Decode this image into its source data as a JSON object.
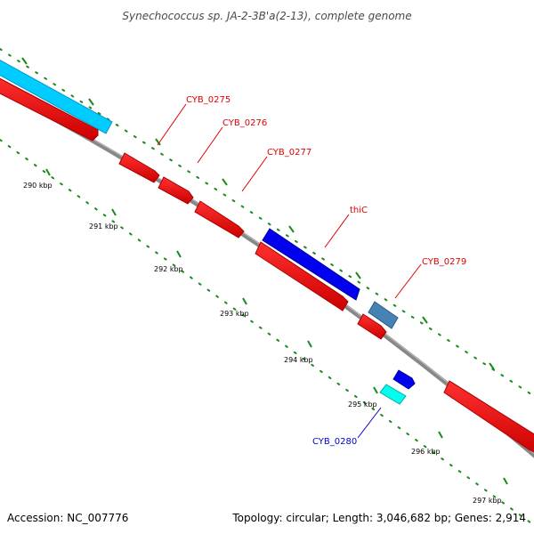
{
  "title": "Synechococcus sp. JA-2-3B'a(2-13), complete genome",
  "footer": {
    "accession": "Accession: NC_007776",
    "topology": "Topology: circular; Length: 3,046,682 bp; Genes: 2,914"
  },
  "colors": {
    "forward_strand": "#0000ee",
    "reverse_strand": "#ff0000",
    "backbone": "#888888",
    "tick": "#1a8a1a",
    "cyan_feature": "#00ccff",
    "steel_feature": "#4682b4",
    "aqua_feature": "#00ffee"
  },
  "ticks": [
    {
      "label": "290 kbp"
    },
    {
      "label": "291 kbp"
    },
    {
      "label": "292 kbp"
    },
    {
      "label": "293 kbp"
    },
    {
      "label": "294 kbp"
    },
    {
      "label": "295 kbp"
    },
    {
      "label": "296 kbp"
    },
    {
      "label": "297 kbp"
    }
  ],
  "gene_labels": [
    {
      "name": "CYB_0275",
      "strand": "reverse"
    },
    {
      "name": "CYB_0276",
      "strand": "reverse"
    },
    {
      "name": "CYB_0277",
      "strand": "reverse"
    },
    {
      "name": "thiC",
      "strand": "forward"
    },
    {
      "name": "CYB_0279",
      "strand": "reverse"
    },
    {
      "name": "CYB_0280",
      "strand": "forward"
    }
  ]
}
